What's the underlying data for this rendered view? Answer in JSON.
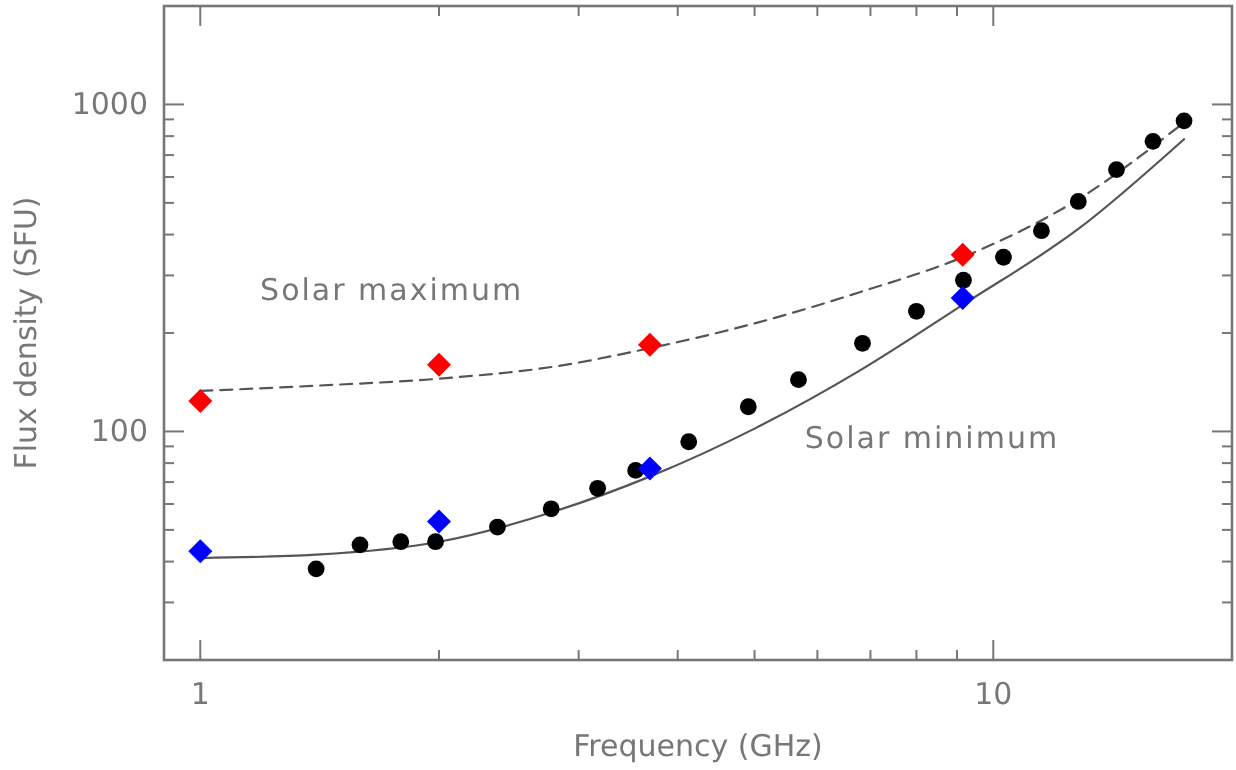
{
  "chart_data": {
    "type": "scatter",
    "xlabel": "Frequency (GHz)",
    "ylabel": "Flux density (SFU)",
    "log": "xy",
    "xlim": [
      0.9,
      20
    ],
    "ylim": [
      20,
      2000
    ],
    "xticks": [
      1,
      {
        "value": 2,
        "label": null
      },
      {
        "value": 3,
        "label": null
      },
      {
        "value": 4,
        "label": null
      },
      {
        "value": 5,
        "label": null
      },
      {
        "value": 6,
        "label": null
      },
      {
        "value": 7,
        "label": null
      },
      {
        "value": 8,
        "label": null
      },
      {
        "value": 9,
        "label": null
      },
      10,
      {
        "value": 20,
        "label": null
      }
    ],
    "yticks": [
      {
        "value": 20,
        "label": null
      },
      {
        "value": 30,
        "label": null
      },
      {
        "value": 40,
        "label": null
      },
      {
        "value": 50,
        "label": null
      },
      {
        "value": 60,
        "label": null
      },
      {
        "value": 70,
        "label": null
      },
      {
        "value": 80,
        "label": null
      },
      {
        "value": 90,
        "label": null
      },
      100,
      {
        "value": 200,
        "label": null
      },
      {
        "value": 300,
        "label": null
      },
      {
        "value": 400,
        "label": null
      },
      {
        "value": 500,
        "label": null
      },
      {
        "value": 600,
        "label": null
      },
      {
        "value": 700,
        "label": null
      },
      {
        "value": 800,
        "label": null
      },
      {
        "value": 900,
        "label": null
      },
      1000,
      {
        "value": 2000,
        "label": null
      }
    ],
    "grid": false,
    "series": [
      {
        "type": "line",
        "color": "#555555",
        "line_style": "dashed",
        "marker": "none",
        "x": [
          1,
          1.4,
          2,
          2.8,
          3.7,
          5,
          6.8,
          9.2,
          12.8,
          17.4
        ],
        "values": [
          133,
          138,
          145,
          158,
          180,
          214,
          267,
          343,
          513,
          881
        ]
      },
      {
        "type": "line",
        "color": "#555555",
        "line_style": "solid",
        "marker": "none",
        "x": [
          1,
          1.4,
          2,
          2.8,
          3.7,
          5,
          6.8,
          9.2,
          12.8,
          17.4
        ],
        "values": [
          41,
          42,
          46,
          57,
          73,
          102,
          154,
          246,
          416,
          783
        ]
      },
      {
        "color": "#000000",
        "marker": "circle",
        "x": [
          1.4,
          1.59,
          1.79,
          1.98,
          2.37,
          2.77,
          3.17,
          3.54,
          4.13,
          4.91,
          5.68,
          6.84,
          8.0,
          9.17,
          10.3,
          11.5,
          12.8,
          14.3,
          15.9,
          17.4
        ],
        "values": [
          38,
          45,
          46,
          46,
          51,
          58,
          67,
          76,
          93,
          119,
          144,
          186,
          233,
          290,
          341,
          411,
          505,
          632,
          771,
          891
        ]
      },
      {
        "color": "#ff0000",
        "marker": "diamond",
        "x": [
          1,
          2,
          3.69,
          9.15
        ],
        "values": [
          124,
          160,
          184,
          347
        ]
      },
      {
        "color": "#0000ff",
        "marker": "diamond",
        "x": [
          1,
          2,
          3.69,
          9.15
        ],
        "values": [
          43,
          53,
          77,
          256
        ]
      }
    ],
    "annotations": [
      "Solar maximum",
      "Solar minimum"
    ]
  }
}
